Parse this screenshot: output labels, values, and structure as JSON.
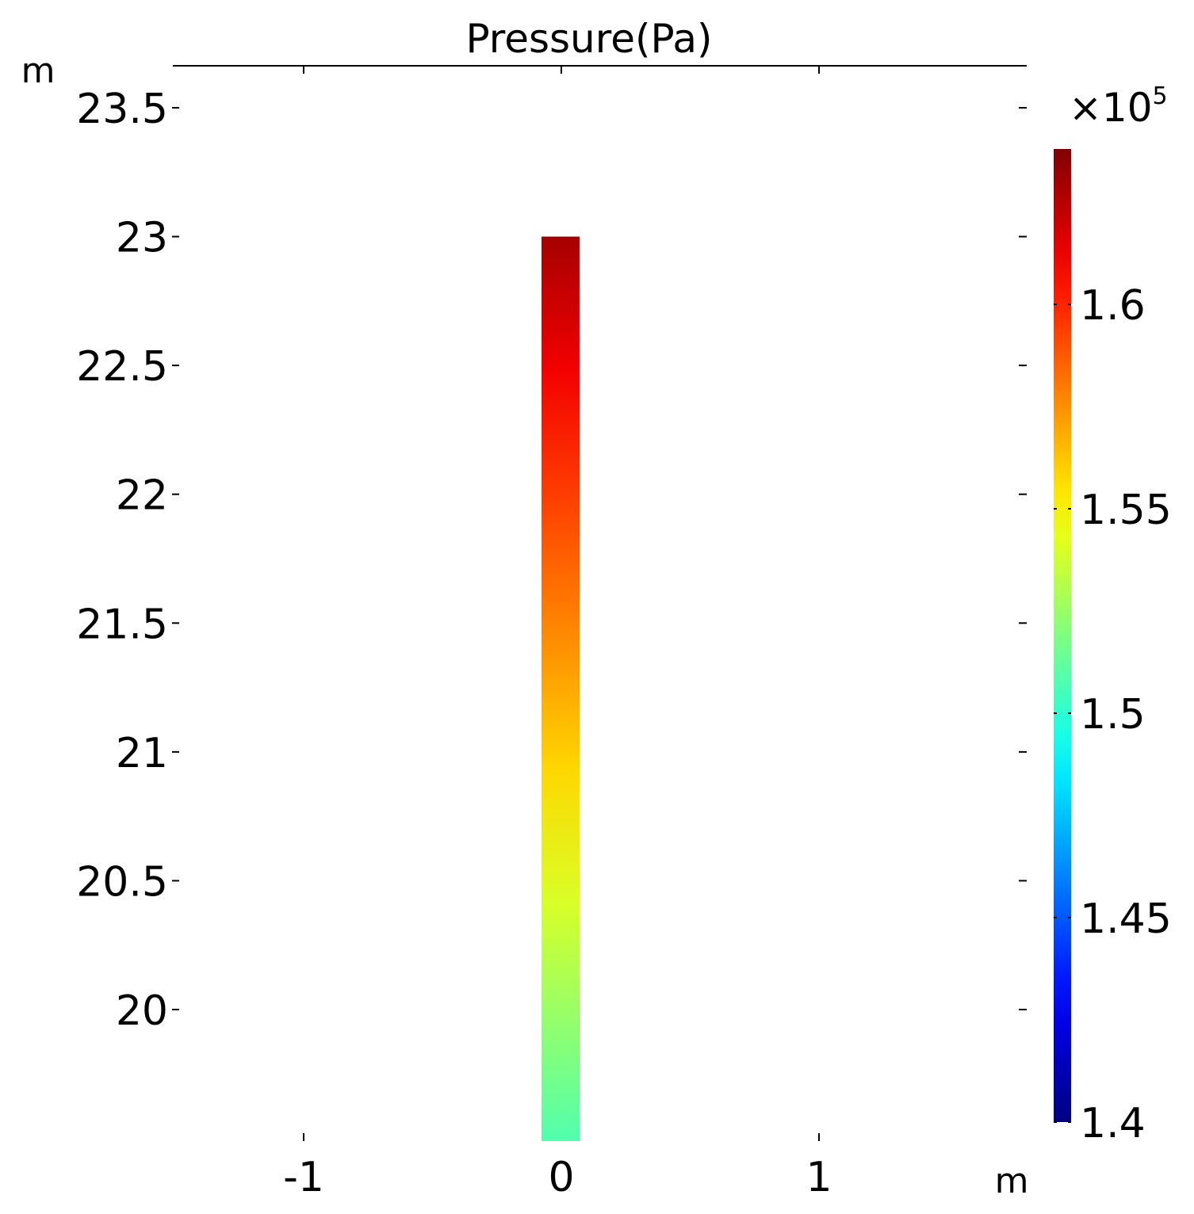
{
  "chart_data": {
    "type": "heatmap",
    "title": "Pressure(Pa)",
    "xlabel": "m",
    "ylabel": "m",
    "xlim": [
      -1.5,
      1.8
    ],
    "ylim": [
      19.5,
      23.65
    ],
    "xticks": [
      -1,
      0,
      1
    ],
    "xtick_labels": [
      "-1",
      "0",
      "1"
    ],
    "yticks": [
      20,
      20.5,
      21,
      21.5,
      22,
      22.5,
      23,
      23.5
    ],
    "ytick_labels": [
      "20",
      "20.5",
      "21",
      "21.5",
      "22",
      "22.5",
      "23",
      "23.5"
    ],
    "domain": {
      "x_range": [
        -0.08,
        0.07
      ],
      "y_range": [
        19.6,
        23.0
      ]
    },
    "field_profile": [
      {
        "y": 19.6,
        "value": 150.8
      },
      {
        "y": 20.0,
        "value": 152.2
      },
      {
        "y": 20.5,
        "value": 154.0
      },
      {
        "y": 21.0,
        "value": 155.8
      },
      {
        "y": 21.5,
        "value": 157.6
      },
      {
        "y": 22.0,
        "value": 159.3
      },
      {
        "y": 22.5,
        "value": 161.1
      },
      {
        "y": 23.0,
        "value": 162.9
      }
    ],
    "colorbar": {
      "colormap": "jet",
      "range": [
        140,
        163.8
      ],
      "ticks": [
        140,
        145,
        150,
        155,
        160
      ],
      "tick_labels": [
        "1.4",
        "1.45",
        "1.5",
        "1.55",
        "1.6"
      ],
      "exponent_label": "×10",
      "exponent_power": "5"
    },
    "grid": false,
    "legend": "none"
  }
}
